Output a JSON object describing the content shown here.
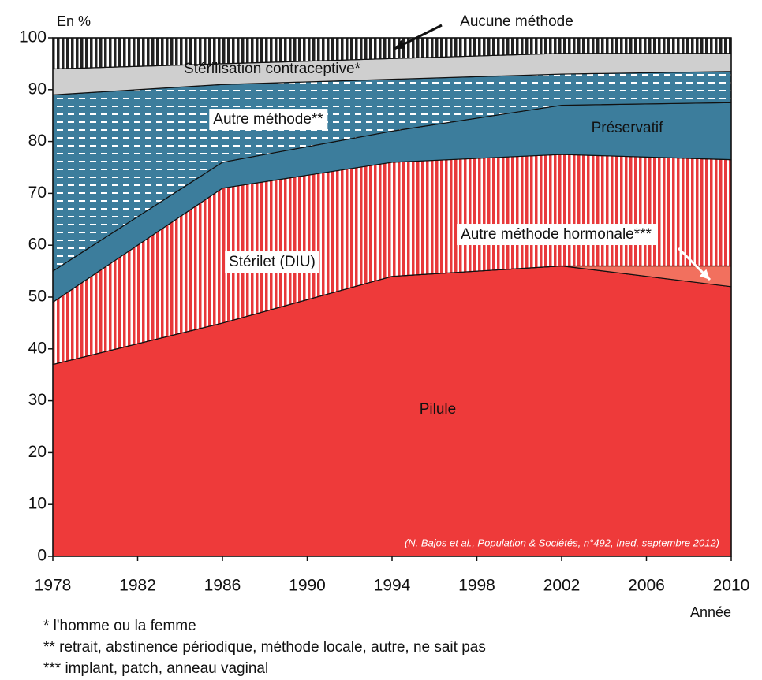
{
  "chart_data": {
    "type": "stacked-area",
    "y_label": "En %",
    "x_label": "Année",
    "annotation": "(N. Bajos et al., Population & Sociétés, n°492, Ined, septembre 2012)",
    "footnotes": [
      "* l'homme ou la femme",
      "** retrait, abstinence périodique, méthode locale, autre, ne sait pas",
      "*** implant, patch, anneau vaginal"
    ],
    "x": [
      1978,
      1986,
      1994,
      2002,
      2010
    ],
    "series": [
      {
        "name": "Pilule",
        "color": "#ee3a3a",
        "pattern": "solid",
        "values": [
          37,
          45,
          54,
          56,
          52
        ]
      },
      {
        "name": "Autre méthode hormonale***",
        "color": "#f2705e",
        "pattern": "solid",
        "values": [
          0,
          0,
          0,
          0,
          4
        ]
      },
      {
        "name": "Stérilet (DIU)",
        "color": "#e8383a",
        "pattern": "vertical-stripes",
        "values": [
          12,
          26,
          22,
          21.5,
          20.5
        ]
      },
      {
        "name": "Préservatif",
        "color": "#3c7d9c",
        "pattern": "solid",
        "values": [
          6,
          5,
          6,
          9.5,
          11
        ]
      },
      {
        "name": "Autre méthode**",
        "color": "#3c7d9c",
        "pattern": "dashes",
        "values": [
          34,
          15,
          10,
          6,
          6
        ]
      },
      {
        "name": "Stérilisation contraceptive*",
        "color": "#cfcfcf",
        "pattern": "solid",
        "values": [
          5,
          4,
          4,
          4,
          3.5
        ]
      },
      {
        "name": "Aucune méthode",
        "color": "#222222",
        "pattern": "vertical-stripes",
        "values": [
          6,
          5,
          4,
          3,
          3
        ]
      }
    ],
    "xlim": [
      1978,
      2010
    ],
    "xticks": [
      1978,
      1982,
      1986,
      1990,
      1994,
      1998,
      2002,
      2006,
      2010
    ],
    "ylim": [
      0,
      100
    ],
    "yticks": [
      0,
      10,
      20,
      30,
      40,
      50,
      60,
      70,
      80,
      90,
      100
    ]
  }
}
